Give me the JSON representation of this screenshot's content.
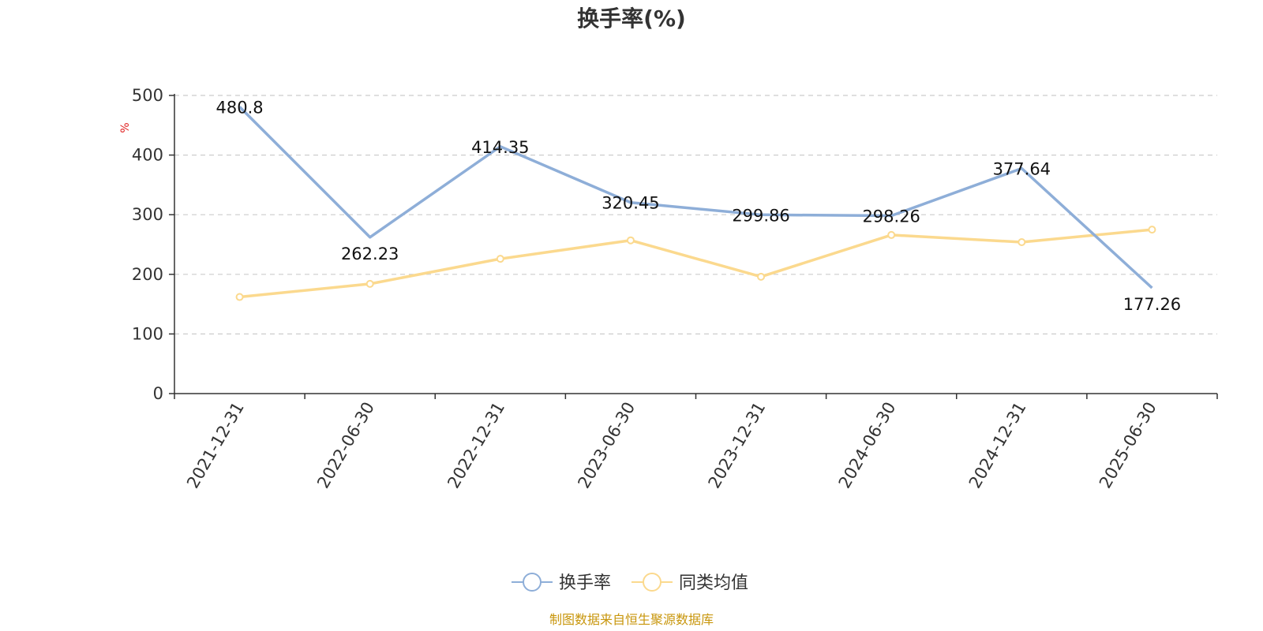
{
  "chart_data": {
    "type": "line",
    "title": "换手率(%)",
    "ylabel": "%",
    "xlabel": "",
    "ylim": [
      0,
      500
    ],
    "yticks": [
      0,
      100,
      200,
      300,
      400,
      500
    ],
    "grid": "horizontal dashed",
    "legend_position": "bottom-center",
    "categories": [
      "2021-12-31",
      "2022-06-30",
      "2022-12-31",
      "2023-06-30",
      "2023-12-31",
      "2024-06-30",
      "2024-12-31",
      "2025-06-30"
    ],
    "series": [
      {
        "name": "换手率",
        "color": "#8eaed8",
        "values": [
          480.8,
          262.23,
          414.35,
          320.45,
          299.86,
          298.26,
          377.64,
          177.26
        ],
        "labels": [
          "480.8",
          "262.23",
          "414.35",
          "320.45",
          "299.86",
          "298.26",
          "377.64",
          "177.26"
        ]
      },
      {
        "name": "同类均值",
        "color": "#fbd98e",
        "values": [
          162,
          184,
          226,
          257,
          196,
          266,
          254,
          275
        ]
      }
    ],
    "source": "制图数据来自恒生聚源数据库"
  }
}
